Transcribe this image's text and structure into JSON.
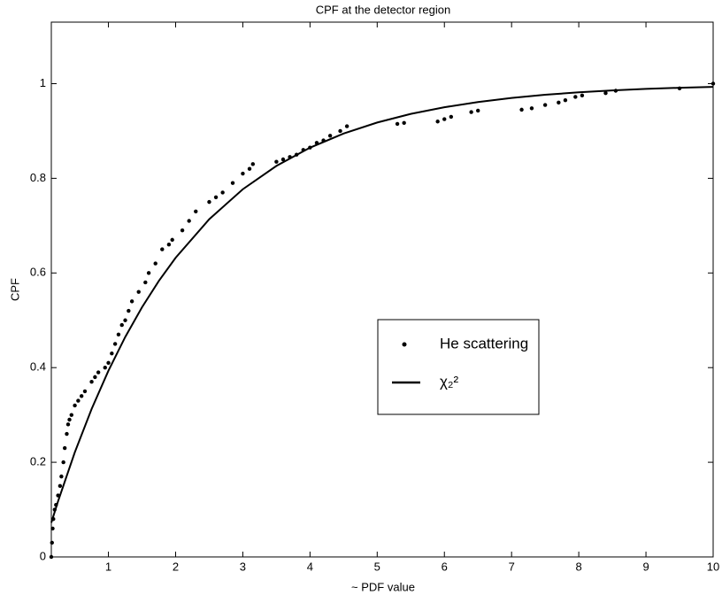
{
  "chart_data": {
    "type": "scatter-line",
    "title": "CPF at the detector region",
    "x_label": "~ PDF value",
    "y_label": "CPF",
    "xlim": [
      0.15,
      10
    ],
    "ylim": [
      0,
      1.13
    ],
    "xticks": [
      1,
      2,
      3,
      4,
      5,
      6,
      7,
      8,
      9,
      10
    ],
    "yticks": [
      0,
      0.2,
      0.4,
      0.6,
      0.8,
      1
    ],
    "grid": false,
    "legend_position": "center-right",
    "series": [
      {
        "name": "He scattering",
        "type": "scatter",
        "color": "#000000",
        "x": [
          0.15,
          0.16,
          0.17,
          0.18,
          0.2,
          0.22,
          0.25,
          0.28,
          0.3,
          0.33,
          0.35,
          0.38,
          0.4,
          0.42,
          0.45,
          0.5,
          0.55,
          0.6,
          0.65,
          0.75,
          0.8,
          0.85,
          0.95,
          1.0,
          1.05,
          1.1,
          1.15,
          1.2,
          1.25,
          1.3,
          1.35,
          1.45,
          1.55,
          1.6,
          1.7,
          1.8,
          1.9,
          1.95,
          2.1,
          2.2,
          2.3,
          2.5,
          2.6,
          2.7,
          2.85,
          3.0,
          3.1,
          3.15,
          3.5,
          3.6,
          3.7,
          3.8,
          3.9,
          4.0,
          4.1,
          4.2,
          4.3,
          4.45,
          4.55,
          5.3,
          5.4,
          5.9,
          6.0,
          6.1,
          6.4,
          6.5,
          7.15,
          7.3,
          7.5,
          7.7,
          7.8,
          7.95,
          8.05,
          8.4,
          8.55,
          9.5,
          10.0
        ],
        "values": [
          0.0,
          0.03,
          0.06,
          0.08,
          0.1,
          0.11,
          0.13,
          0.15,
          0.17,
          0.2,
          0.23,
          0.26,
          0.28,
          0.29,
          0.3,
          0.32,
          0.33,
          0.34,
          0.35,
          0.37,
          0.38,
          0.39,
          0.4,
          0.41,
          0.43,
          0.45,
          0.47,
          0.49,
          0.5,
          0.52,
          0.54,
          0.56,
          0.58,
          0.6,
          0.62,
          0.65,
          0.66,
          0.67,
          0.69,
          0.71,
          0.73,
          0.75,
          0.76,
          0.77,
          0.79,
          0.81,
          0.82,
          0.83,
          0.835,
          0.84,
          0.845,
          0.85,
          0.86,
          0.865,
          0.875,
          0.88,
          0.89,
          0.9,
          0.91,
          0.915,
          0.917,
          0.92,
          0.925,
          0.93,
          0.94,
          0.943,
          0.945,
          0.948,
          0.955,
          0.96,
          0.965,
          0.972,
          0.975,
          0.98,
          0.985,
          0.99,
          1.0
        ]
      },
      {
        "name": "χ₂²",
        "type": "line",
        "color": "#000000",
        "x": [
          0.15,
          0.25,
          0.5,
          0.75,
          1,
          1.25,
          1.5,
          1.75,
          2,
          2.5,
          3,
          3.5,
          4,
          4.5,
          5,
          5.5,
          6,
          6.5,
          7,
          7.5,
          8,
          8.5,
          9,
          9.5,
          10
        ],
        "values": [
          0.0723,
          0.1175,
          0.2212,
          0.3127,
          0.3935,
          0.4647,
          0.5276,
          0.5831,
          0.6321,
          0.7135,
          0.7769,
          0.8262,
          0.8647,
          0.8946,
          0.9179,
          0.9361,
          0.9502,
          0.9612,
          0.9698,
          0.9765,
          0.9817,
          0.9857,
          0.9889,
          0.9913,
          0.9933
        ]
      }
    ]
  }
}
